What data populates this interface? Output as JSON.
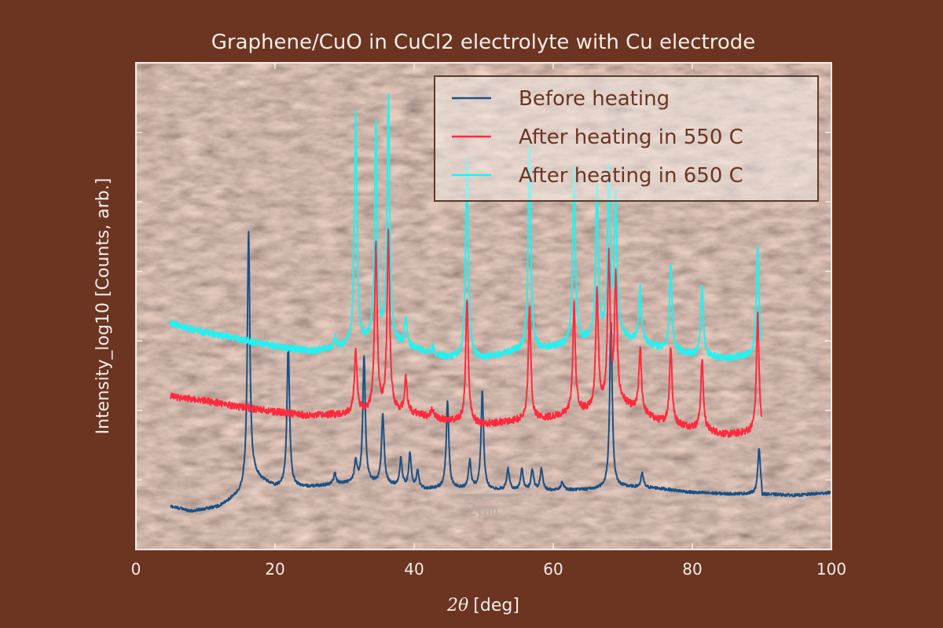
{
  "colors": {
    "page_background": "#6b3522",
    "axis": "#f6ece6",
    "micrograph_base": "#a8958a"
  },
  "micrograph": {
    "scale_bar_label": "2μm"
  },
  "chart_data": {
    "type": "line",
    "title": "Graphene/CuO in CuCl2 electrolyte with Cu electrode",
    "xlabel_math": "2θ",
    "xlabel_unit": "[deg]",
    "ylabel": "Intensity_log10 [Counts, arb.]",
    "xlim": [
      0,
      100
    ],
    "x_ticks": [
      "0",
      "20",
      "40",
      "60",
      "80",
      "100"
    ],
    "x_tick_values": [
      0,
      20,
      40,
      60,
      80,
      100
    ],
    "ylim": [
      0,
      7
    ],
    "y_tick_values": [
      1,
      2,
      3,
      4,
      5,
      6
    ],
    "y_tick_labels_shown": false,
    "grid": false,
    "legend": {
      "position": "top-right"
    },
    "x_range": [
      5,
      90
    ],
    "series": [
      {
        "name": "Before heating",
        "color": "#1b5185",
        "baseline": [
          [
            5,
            0.62
          ],
          [
            8,
            0.55
          ],
          [
            12,
            0.62
          ],
          [
            15,
            0.8
          ],
          [
            17,
            1.05
          ],
          [
            20,
            0.9
          ],
          [
            25,
            0.9
          ],
          [
            30,
            0.95
          ],
          [
            35,
            0.95
          ],
          [
            40,
            0.86
          ],
          [
            45,
            0.88
          ],
          [
            50,
            0.86
          ],
          [
            55,
            0.85
          ],
          [
            60,
            0.85
          ],
          [
            65,
            0.86
          ],
          [
            70,
            0.9
          ],
          [
            75,
            0.88
          ],
          [
            80,
            0.82
          ],
          [
            85,
            0.8
          ],
          [
            90,
            0.8
          ],
          [
            95,
            0.78
          ],
          [
            100,
            0.82
          ]
        ],
        "peaks": [
          [
            16.2,
            3.6
          ],
          [
            21.9,
            2.05
          ],
          [
            28.6,
            0.15
          ],
          [
            31.6,
            0.3
          ],
          [
            32.8,
            1.8
          ],
          [
            35.5,
            1.0
          ],
          [
            38.1,
            0.4
          ],
          [
            39.4,
            0.5
          ],
          [
            40.5,
            0.25
          ],
          [
            44.8,
            1.25
          ],
          [
            48.0,
            0.4
          ],
          [
            49.8,
            1.4
          ],
          [
            53.5,
            0.3
          ],
          [
            55.5,
            0.3
          ],
          [
            57.0,
            0.3
          ],
          [
            58.3,
            0.3
          ],
          [
            61.3,
            0.12
          ],
          [
            68.3,
            2.4
          ],
          [
            72.8,
            0.2
          ],
          [
            89.6,
            0.65
          ]
        ],
        "noise": 0.02
      },
      {
        "name": "After heating in 550 C",
        "color": "#ff2a3d",
        "baseline": [
          [
            5,
            2.2
          ],
          [
            10,
            2.14
          ],
          [
            15,
            2.05
          ],
          [
            20,
            1.98
          ],
          [
            25,
            1.92
          ],
          [
            30,
            1.95
          ],
          [
            35,
            2.0
          ],
          [
            40,
            1.95
          ],
          [
            45,
            1.85
          ],
          [
            50,
            1.8
          ],
          [
            55,
            1.85
          ],
          [
            60,
            1.9
          ],
          [
            65,
            2.0
          ],
          [
            70,
            2.1
          ],
          [
            75,
            1.85
          ],
          [
            80,
            1.75
          ],
          [
            85,
            1.65
          ],
          [
            90,
            1.7
          ]
        ],
        "peaks": [
          [
            31.6,
            0.9
          ],
          [
            34.5,
            2.4
          ],
          [
            36.3,
            2.6
          ],
          [
            38.8,
            0.5
          ],
          [
            42.6,
            0.1
          ],
          [
            47.6,
            1.8
          ],
          [
            56.6,
            1.6
          ],
          [
            63.0,
            1.55
          ],
          [
            66.3,
            1.7
          ],
          [
            68.0,
            2.2
          ],
          [
            69.0,
            1.8
          ],
          [
            72.5,
            0.9
          ],
          [
            76.9,
            1.1
          ],
          [
            81.4,
            1.0
          ],
          [
            89.4,
            1.7
          ]
        ],
        "noise": 0.05
      },
      {
        "name": "After heating in 650 C",
        "color": "#22f2f2",
        "baseline": [
          [
            5,
            3.25
          ],
          [
            10,
            3.12
          ],
          [
            15,
            3.02
          ],
          [
            20,
            2.92
          ],
          [
            25,
            2.85
          ],
          [
            30,
            2.9
          ],
          [
            35,
            3.0
          ],
          [
            40,
            2.88
          ],
          [
            45,
            2.75
          ],
          [
            50,
            2.75
          ],
          [
            55,
            2.85
          ],
          [
            60,
            2.9
          ],
          [
            65,
            3.0
          ],
          [
            70,
            3.05
          ],
          [
            75,
            2.9
          ],
          [
            80,
            2.8
          ],
          [
            85,
            2.75
          ],
          [
            90,
            2.8
          ]
        ],
        "peaks": [
          [
            28.6,
            0.15
          ],
          [
            31.6,
            3.3
          ],
          [
            34.5,
            3.1
          ],
          [
            36.3,
            3.5
          ],
          [
            38.8,
            0.4
          ],
          [
            42.6,
            0.1
          ],
          [
            47.6,
            2.9
          ],
          [
            56.6,
            2.9
          ],
          [
            63.0,
            2.5
          ],
          [
            66.3,
            2.2
          ],
          [
            68.0,
            2.4
          ],
          [
            69.0,
            2.0
          ],
          [
            72.5,
            0.8
          ],
          [
            76.9,
            1.2
          ],
          [
            81.4,
            1.0
          ],
          [
            89.4,
            1.55
          ]
        ],
        "noise": 0.05
      }
    ]
  }
}
